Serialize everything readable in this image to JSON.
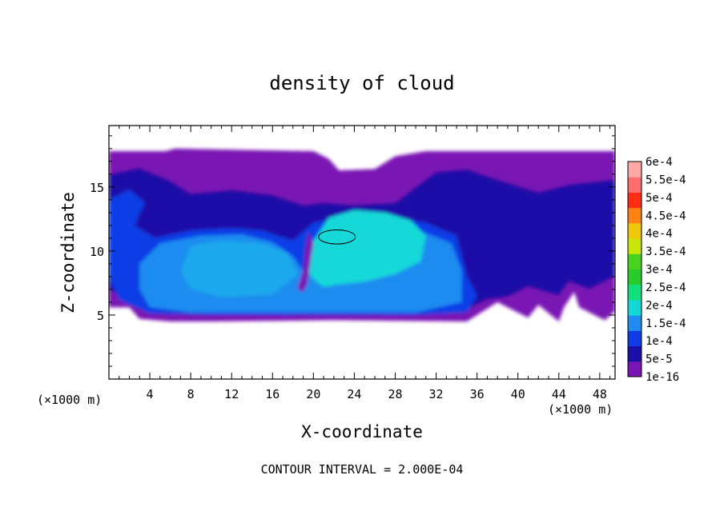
{
  "chart_data": {
    "type": "heatmap",
    "title": "density of cloud",
    "xlabel": "X-coordinate",
    "ylabel": "Z-coordinate",
    "x_unit": "(×1000 m)",
    "y_unit": "(×1000 m)",
    "xlim": [
      0,
      49.5
    ],
    "ylim": [
      0,
      19.8
    ],
    "x_ticks": [
      4,
      8,
      12,
      16,
      20,
      24,
      28,
      32,
      36,
      40,
      44,
      48
    ],
    "y_ticks": [
      5,
      10,
      15
    ],
    "contour_interval_label": "CONTOUR INTERVAL = 2.000E-04",
    "colorbar": {
      "labels": [
        "1e-16",
        "5e-5",
        "1e-4",
        "1.5e-4",
        "2e-4",
        "2.5e-4",
        "3e-4",
        "3.5e-4",
        "4e-4",
        "4.5e-4",
        "5e-4",
        "5.5e-4",
        "6e-4"
      ],
      "colors": [
        "#7a14b4",
        "#1a0fa8",
        "#0f3ce6",
        "#1e8cf0",
        "#14d8d8",
        "#10e07c",
        "#28cc28",
        "#46d21e",
        "#c8e60a",
        "#f0c80a",
        "#ff8214",
        "#ff2d14",
        "#ff6e6e",
        "#ffa8a8"
      ]
    },
    "regions": [
      {
        "level": "1e-16",
        "desc_x": [
          0,
          49.5
        ],
        "z_range": [
          4.5,
          17.8
        ]
      },
      {
        "level": "5e-5",
        "x_range": [
          0,
          49.5
        ],
        "z_range": [
          4.8,
          16.5
        ]
      },
      {
        "level": "1e-4",
        "x_range": [
          0.5,
          35
        ],
        "z_range": [
          4.9,
          12.8
        ]
      },
      {
        "level": "1.5e-4",
        "x_range": [
          4,
          34
        ],
        "z_range": [
          5.0,
          11.8
        ]
      },
      {
        "level": "2e-4",
        "x_range": [
          19,
          31
        ],
        "z_range": [
          7.0,
          13.2
        ]
      }
    ],
    "contour_lines": [
      {
        "level": "2e-4",
        "x_center": 22.3,
        "z_center": 11.1
      }
    ]
  }
}
